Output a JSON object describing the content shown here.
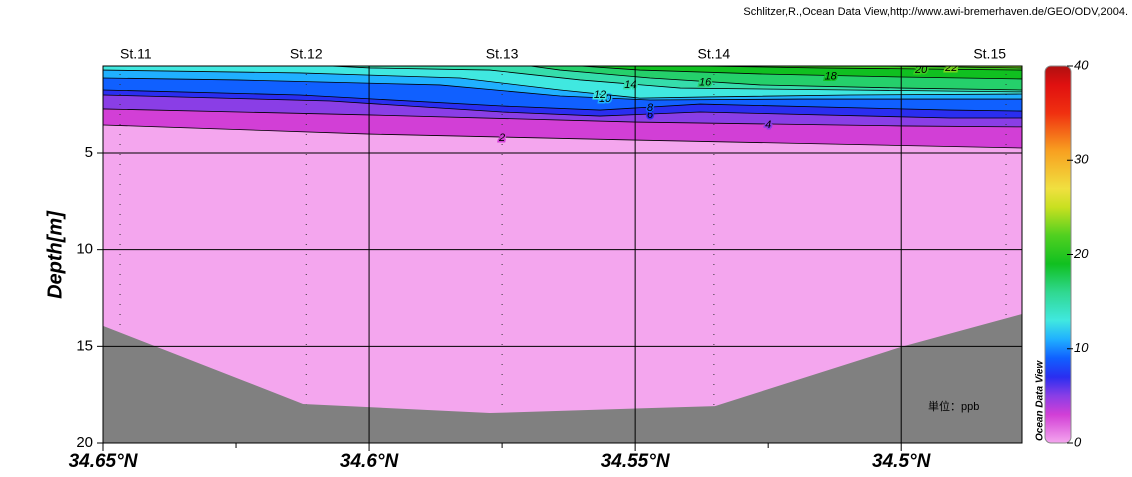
{
  "chart_data": {
    "type": "section",
    "credit": "Schlitzer,R.,Ocean Data View,http://www.awi-bremerhaven.de/GEO/ODV,2004.",
    "y_label": "Depth[m]",
    "unit": "単位：ppb",
    "watermark": "Ocean Data View",
    "xlim": [
      34.65,
      34.4773
    ],
    "xticks": [
      {
        "value": 34.65,
        "label": "34.65°N"
      },
      {
        "value": 34.6,
        "label": "34.6°N"
      },
      {
        "value": 34.55,
        "label": "34.55°N"
      },
      {
        "value": 34.5,
        "label": "34.5°N"
      }
    ],
    "xminor_ticks": [
      34.625,
      34.575,
      34.525
    ],
    "ylim": [
      20,
      0.5
    ],
    "yticks": [
      5,
      10,
      15,
      20
    ],
    "grid": true,
    "stations": {
      "names": [
        "St.11",
        "St.12",
        "St.13",
        "St.14",
        "St.15"
      ],
      "lat": [
        34.6468,
        34.6118,
        34.575,
        34.5352,
        34.4803
      ]
    },
    "bottom": {
      "lat": [
        34.65,
        34.6124,
        34.5773,
        34.535,
        34.5,
        34.4773
      ],
      "depth": [
        13.94,
        17.98,
        18.45,
        18.09,
        15.03,
        13.33
      ],
      "color": "#808080"
    },
    "zlim": [
      0,
      40
    ],
    "zticks": [
      0,
      10,
      20,
      30,
      40
    ],
    "colorscale": [
      [
        0,
        "#f4a6ee"
      ],
      [
        3,
        "#d23fd6"
      ],
      [
        5,
        "#8a3ee6"
      ],
      [
        7,
        "#2a2ef0"
      ],
      [
        9,
        "#1060ff"
      ],
      [
        11,
        "#20b0ff"
      ],
      [
        13,
        "#40e8e0"
      ],
      [
        16,
        "#30d890"
      ],
      [
        19,
        "#10c020"
      ],
      [
        22,
        "#50d020"
      ],
      [
        25,
        "#c8e020"
      ],
      [
        27,
        "#f0e040"
      ],
      [
        31,
        "#f8a020"
      ],
      [
        35,
        "#f03010"
      ],
      [
        38,
        "#e01010"
      ],
      [
        40,
        "#b01010"
      ]
    ],
    "contours": [
      {
        "level": 2,
        "lat": [
          34.65,
          34.6,
          34.55,
          34.4773
        ],
        "depth": [
          3.55,
          4.02,
          4.33,
          4.74
        ]
      },
      {
        "level": 4,
        "lat": [
          34.65,
          34.6,
          34.55,
          34.5,
          34.4773
        ],
        "depth": [
          2.72,
          3.03,
          3.4,
          3.6,
          3.65
        ]
      },
      {
        "level": 6,
        "lat": [
          34.65,
          34.6073,
          34.575,
          34.5566,
          34.5378,
          34.4908,
          34.4773
        ],
        "depth": [
          2.0,
          2.31,
          2.88,
          3.09,
          2.88,
          3.19,
          3.19
        ]
      },
      {
        "level": 8,
        "lat": [
          34.65,
          34.613,
          34.575,
          34.5566,
          34.5378,
          34.4908,
          34.4773
        ],
        "depth": [
          1.74,
          2.0,
          2.57,
          2.78,
          2.47,
          2.78,
          2.83
        ]
      },
      {
        "level": 10,
        "lat": [
          34.65,
          34.6248,
          34.5867,
          34.5641,
          34.5472,
          34.519,
          34.4773
        ],
        "depth": [
          1.12,
          1.22,
          1.48,
          2.05,
          2.26,
          2.21,
          2.21
        ]
      },
      {
        "level": 12,
        "lat": [
          34.65,
          34.613,
          34.5829,
          34.5641,
          34.5491,
          34.5363,
          34.5096,
          34.4773
        ],
        "depth": [
          0.71,
          0.86,
          1.12,
          1.74,
          2.16,
          2.1,
          2.0,
          1.95
        ]
      },
      {
        "level": 14,
        "lat": [
          34.6073,
          34.5998,
          34.5773,
          34.5603,
          34.5415,
          34.5096,
          34.4773
        ],
        "depth": [
          0.5,
          0.6,
          0.71,
          1.22,
          1.64,
          1.74,
          1.84
        ]
      },
      {
        "level": 16,
        "lat": [
          34.5697,
          34.5641,
          34.5472,
          34.5265,
          34.5,
          34.4773
        ],
        "depth": [
          0.5,
          0.71,
          1.12,
          1.48,
          1.64,
          1.74
        ]
      },
      {
        "level": 18,
        "lat": [
          34.5603,
          34.5491,
          34.5265,
          34.5,
          34.4773
        ],
        "depth": [
          0.5,
          0.71,
          0.91,
          1.07,
          1.17
        ]
      },
      {
        "level": 20,
        "lat": [
          34.5378,
          34.5152,
          34.4773
        ],
        "depth": [
          0.5,
          0.6,
          0.71
        ]
      },
      {
        "level": 22,
        "lat": [
          34.5039,
          34.4773
        ],
        "depth": [
          0.5,
          0.6
        ]
      }
    ]
  }
}
